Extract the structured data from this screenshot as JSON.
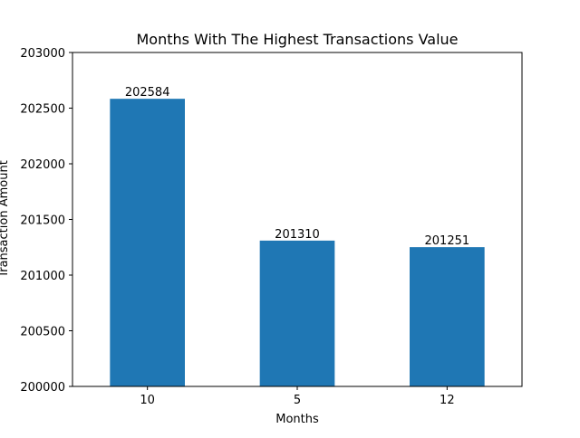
{
  "chart_data": {
    "type": "bar",
    "title": "Months With The Highest Transactions Value",
    "xlabel": "Months",
    "ylabel": "Transaction Amount",
    "categories": [
      "10",
      "5",
      "12"
    ],
    "values": [
      202584,
      201310,
      201251
    ],
    "data_labels": [
      "202584",
      "201310",
      "201251"
    ],
    "ylim": [
      200000,
      203000
    ],
    "yticks": [
      200000,
      200500,
      201000,
      201500,
      202000,
      202500,
      203000
    ],
    "ytick_labels": [
      "200000",
      "200500",
      "201000",
      "201500",
      "202000",
      "202500",
      "203000"
    ],
    "grid": false,
    "legend": "none",
    "bar_color": "#1f77b4"
  }
}
